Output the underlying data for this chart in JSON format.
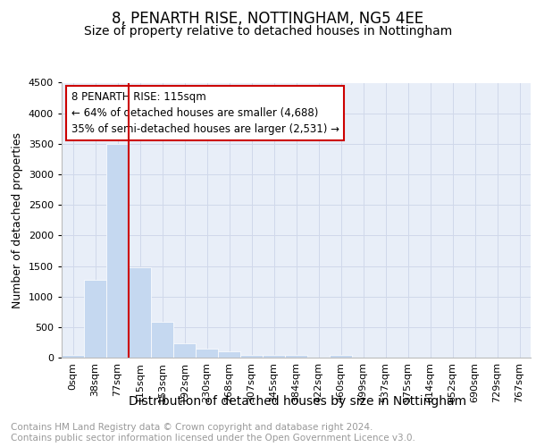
{
  "title": "8, PENARTH RISE, NOTTINGHAM, NG5 4EE",
  "subtitle": "Size of property relative to detached houses in Nottingham",
  "xlabel": "Distribution of detached houses by size in Nottingham",
  "ylabel": "Number of detached properties",
  "footer_line1": "Contains HM Land Registry data © Crown copyright and database right 2024.",
  "footer_line2": "Contains public sector information licensed under the Open Government Licence v3.0.",
  "annotation_title": "8 PENARTH RISE: 115sqm",
  "annotation_line1": "← 64% of detached houses are smaller (4,688)",
  "annotation_line2": "35% of semi-detached houses are larger (2,531) →",
  "bar_labels": [
    "0sqm",
    "38sqm",
    "77sqm",
    "115sqm",
    "153sqm",
    "192sqm",
    "230sqm",
    "268sqm",
    "307sqm",
    "345sqm",
    "384sqm",
    "422sqm",
    "460sqm",
    "499sqm",
    "537sqm",
    "575sqm",
    "614sqm",
    "652sqm",
    "690sqm",
    "729sqm",
    "767sqm"
  ],
  "bar_values": [
    50,
    1280,
    3500,
    1480,
    580,
    240,
    140,
    100,
    50,
    50,
    50,
    0,
    50,
    0,
    0,
    0,
    0,
    0,
    0,
    0,
    0
  ],
  "bar_color": "#c5d8f0",
  "bar_edge_color": "#c5d8f0",
  "vline_color": "#cc0000",
  "annotation_box_edge": "#cc0000",
  "ylim": [
    0,
    4500
  ],
  "yticks": [
    0,
    500,
    1000,
    1500,
    2000,
    2500,
    3000,
    3500,
    4000,
    4500
  ],
  "grid_color": "#d0d8ea",
  "background_color": "#e8eef8",
  "title_fontsize": 12,
  "subtitle_fontsize": 10,
  "xlabel_fontsize": 10,
  "ylabel_fontsize": 9,
  "tick_fontsize": 8,
  "footer_fontsize": 7.5,
  "annotation_fontsize": 8.5
}
